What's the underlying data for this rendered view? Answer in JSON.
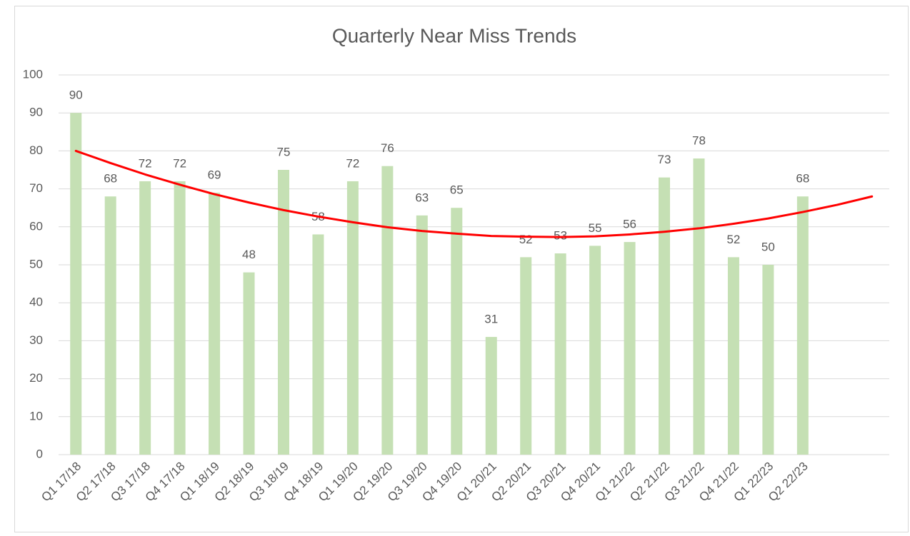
{
  "chart_data": {
    "type": "bar",
    "title": "Quarterly Near Miss Trends",
    "categories": [
      "Q1 17/18",
      "Q2 17/18",
      "Q3 17/18",
      "Q4 17/18",
      "Q1 18/19",
      "Q2 18/19",
      "Q3 18/19",
      "Q4 18/19",
      "Q1 19/20",
      "Q2 19/20",
      "Q3 19/20",
      "Q4 19/20",
      "Q1 20/21",
      "Q2 20/21",
      "Q3 20/21",
      "Q4 20/21",
      "Q1 21/22",
      "Q2 21/22",
      "Q3 21/22",
      "Q4 21/22",
      "Q1 22/23",
      "Q2 22/23",
      null,
      null
    ],
    "values": [
      90,
      68,
      72,
      72,
      69,
      48,
      75,
      58,
      72,
      76,
      63,
      65,
      31,
      52,
      53,
      55,
      56,
      73,
      78,
      52,
      50,
      68,
      null,
      null
    ],
    "color": "#c5e0b4",
    "trendline": {
      "color": "#ff0000",
      "values": [
        80.0,
        76.8,
        73.8,
        71.1,
        68.6,
        66.4,
        64.4,
        62.7,
        61.2,
        59.9,
        58.9,
        58.2,
        57.6,
        57.4,
        57.3,
        57.5,
        58.0,
        58.7,
        59.6,
        60.8,
        62.2,
        63.9,
        65.8,
        68.0
      ]
    },
    "ylim": [
      0,
      100
    ],
    "yticks": [
      0,
      10,
      20,
      30,
      40,
      50,
      60,
      70,
      80,
      90,
      100
    ],
    "grid": true
  }
}
